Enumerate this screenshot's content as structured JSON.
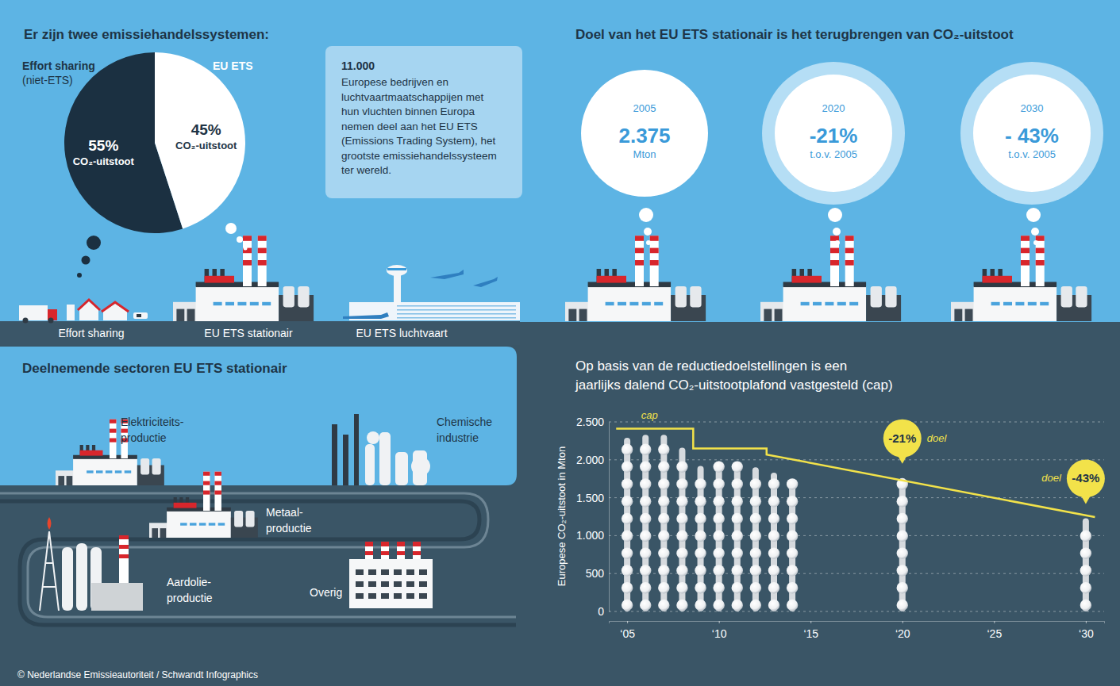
{
  "chart_data": [
    {
      "type": "pie",
      "title": "Er zijn twee emissiehandelssystemen:",
      "categories": [
        "Effort sharing",
        "EU ETS"
      ],
      "values": [
        55,
        45
      ],
      "value_labels": [
        "55% CO₂-uitstoot",
        "45% CO₂-uitstoot"
      ],
      "colors": [
        "#1b3041",
        "#ffffff"
      ],
      "data_labels": true,
      "annotations": [
        {
          "text": "(niet-ETS)",
          "category": "Effort sharing"
        }
      ]
    },
    {
      "type": "bar",
      "title": [
        "Op basis van de reductiedoelstellingen is een",
        "jaarlijks dalend CO₂-uitstootplafond vastgesteld (cap)"
      ],
      "y_label": "Europese CO₂-uitstoot in Mton",
      "xlim": [
        2004,
        2031
      ],
      "xticks": [
        {
          "value": 2005,
          "label": "‘05"
        },
        {
          "value": 2010,
          "label": "‘10"
        },
        {
          "value": 2015,
          "label": "‘15"
        },
        {
          "value": 2020,
          "label": "‘20"
        },
        {
          "value": 2025,
          "label": "‘25"
        },
        {
          "value": 2030,
          "label": "‘30"
        }
      ],
      "ylim": [
        0,
        2500
      ],
      "yticks": [
        0,
        500,
        {
          "value": 1000,
          "label": "1.000"
        },
        {
          "value": 1500,
          "label": "1.500"
        },
        {
          "value": 2000,
          "label": "2.000"
        },
        {
          "value": 2500,
          "label": "2.500"
        }
      ],
      "grid": true,
      "series": [
        {
          "type": "bar",
          "color": "#d6dade",
          "x": [
            2005,
            2006,
            2007,
            2008,
            2009,
            2010,
            2011,
            2012,
            2013,
            2014,
            2020,
            2030
          ],
          "values": [
            2290,
            2330,
            2330,
            2160,
            1920,
            1980,
            1950,
            1900,
            1830,
            1740,
            1760,
            1230
          ]
        },
        {
          "name": "cap",
          "type": "line",
          "color": "#f2e24a",
          "x": [
            2004.4,
            2008.6,
            2008.6,
            2012.6,
            2012.6,
            2030.5
          ],
          "values": [
            2410,
            2410,
            2150,
            2150,
            2070,
            1245
          ]
        }
      ],
      "annotations": [
        {
          "x": 2020,
          "text": "-21%",
          "label": "doel"
        },
        {
          "x": 2030,
          "text": "-43%",
          "label": "doel"
        }
      ]
    }
  ],
  "infographic": {
    "ets_box": {
      "title": "11.000",
      "lines": [
        "Europese bedrijven en",
        "luchtvaartmaatschappijen met",
        "hun vluchten binnen Europa",
        "nemen deel aan het EU ETS",
        "(Emissions Trading System), het",
        "grootste emissiehandelssysteem",
        "ter wereld."
      ]
    },
    "ground_labels": [
      "Effort sharing",
      "EU ETS stationair",
      "EU ETS luchtvaart"
    ],
    "goal": {
      "title": "Doel van het EU ETS stationair is het terugbrengen van CO₂-uitstoot",
      "bubbles": [
        {
          "year": "2005",
          "value": "2.375",
          "unit": "Mton"
        },
        {
          "year": "2020",
          "value": "-21%",
          "unit": "t.o.v. 2005"
        },
        {
          "year": "2030",
          "value": "- 43%",
          "unit": "t.o.v. 2005"
        }
      ]
    },
    "sectors": {
      "title": "Deelnemende sectoren EU ETS stationair",
      "items": [
        [
          "Elektriciteits-",
          "productie"
        ],
        [
          "Chemische",
          "industrie"
        ],
        [
          "Metaal-",
          "productie"
        ],
        [
          "Aardolie-",
          "productie"
        ],
        [
          "Overig"
        ]
      ]
    },
    "credit": "© Nederlandse Emissieautoriteit / Schwandt Infographics"
  }
}
